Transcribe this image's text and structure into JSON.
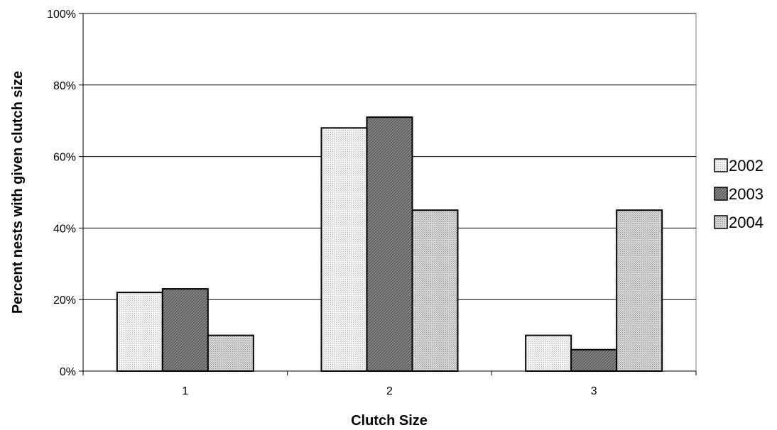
{
  "chart_data": {
    "type": "bar",
    "title": "",
    "xlabel": "Clutch Size",
    "ylabel": "Percent nests with given clutch size",
    "categories": [
      "1",
      "2",
      "3"
    ],
    "series": [
      {
        "name": "2002",
        "values": [
          22,
          68,
          10
        ],
        "color": "#ececec"
      },
      {
        "name": "2003",
        "values": [
          23,
          71,
          6
        ],
        "color": "#7a7a7a"
      },
      {
        "name": "2004",
        "values": [
          10,
          45,
          45
        ],
        "color": "#c4c4c4"
      }
    ],
    "ylim": [
      0,
      100
    ],
    "yticks": [
      0,
      20,
      40,
      60,
      80,
      100
    ],
    "ytick_labels": [
      "0%",
      "20%",
      "40%",
      "60%",
      "80%",
      "100%"
    ],
    "grid": true,
    "legend_position": "right"
  }
}
